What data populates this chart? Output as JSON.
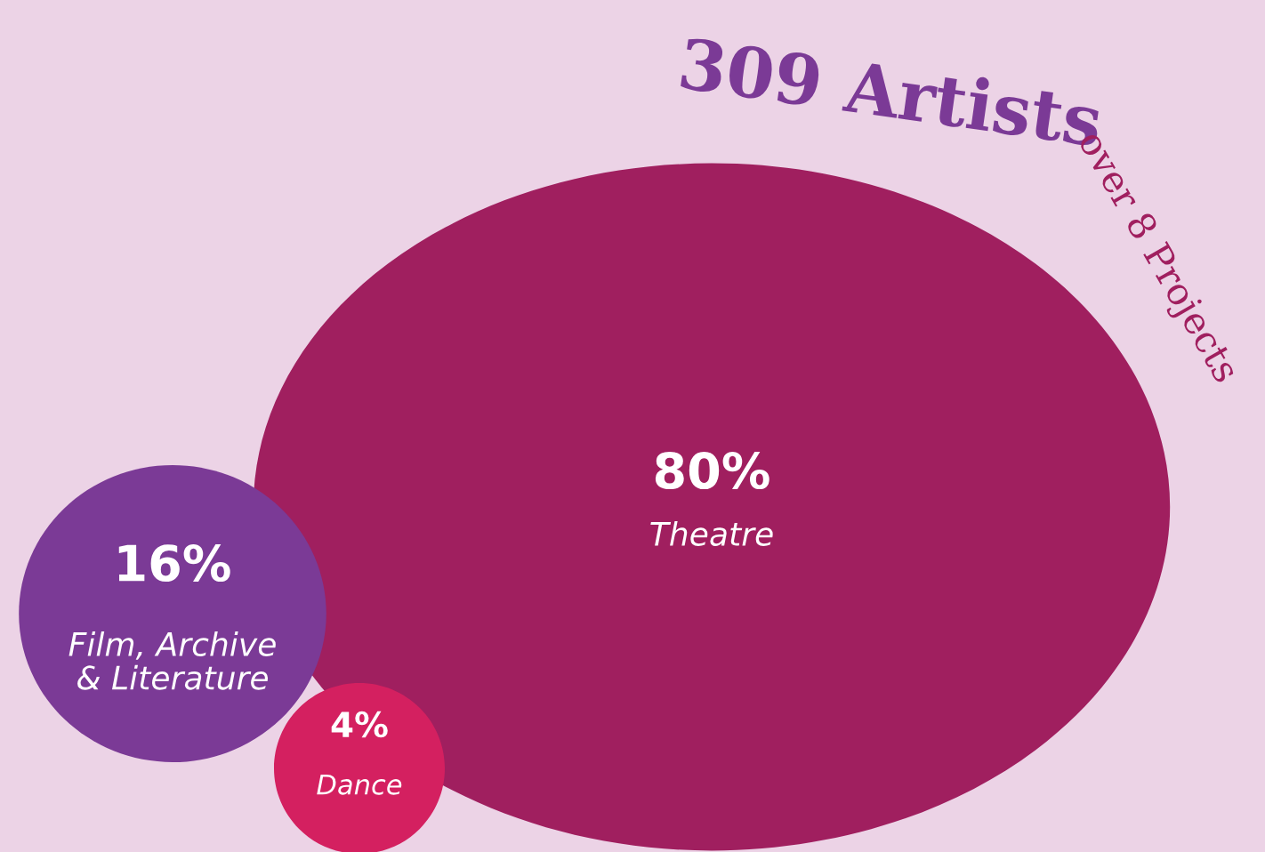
{
  "chart_data": {
    "type": "other",
    "title": "309 Artists",
    "subtitle": "over 8 Projects",
    "categories": [
      "Theatre",
      "Film, Archive\n& Literature",
      "Dance"
    ],
    "values": [
      80,
      16,
      4
    ],
    "value_labels": [
      "80%",
      "16%",
      "4%"
    ],
    "colors": [
      "#a01f5f",
      "#7b3a96",
      "#d42060"
    ]
  }
}
